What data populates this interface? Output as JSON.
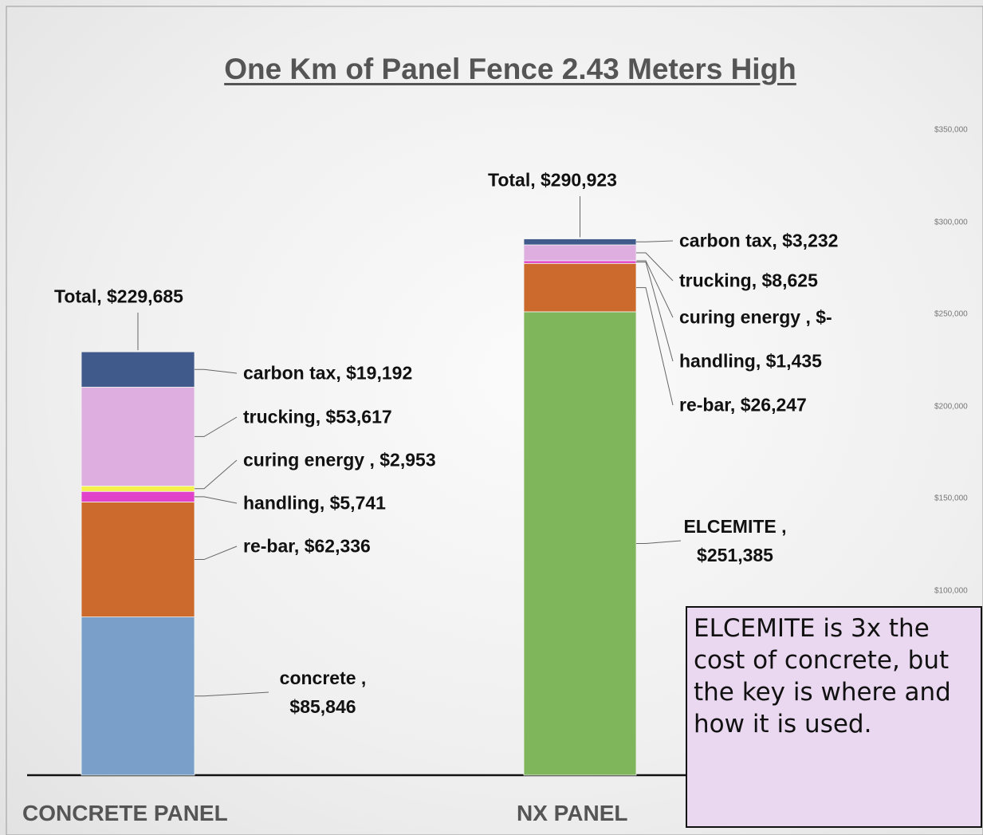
{
  "chart_data": {
    "type": "stacked_bar",
    "title": "One Km of Panel Fence 2.43 Meters High",
    "categories": [
      "CONCRETE PANEL",
      "NX PANEL"
    ],
    "series": [
      {
        "name": "concrete",
        "color": "#7aa0c9",
        "values": [
          85846,
          null
        ],
        "value_labels": [
          "concrete , $85,846",
          null
        ]
      },
      {
        "name": "ELCEMITE",
        "color": "#7fb65c",
        "values": [
          null,
          251385
        ],
        "value_labels": [
          null,
          "ELCEMITE , $251,385"
        ]
      },
      {
        "name": "re-bar",
        "color": "#cc6a2e",
        "values": [
          62336,
          26247
        ],
        "value_labels": [
          "re-bar,  $62,336",
          "re-bar,  $26,247"
        ]
      },
      {
        "name": "handling",
        "color": "#e043c9",
        "values": [
          5741,
          1435
        ],
        "value_labels": [
          "handling,  $5,741",
          "handling,  $1,435"
        ]
      },
      {
        "name": "curing energy",
        "color": "#f6f04c",
        "values": [
          2953,
          0
        ],
        "value_labels": [
          "curing energy ,  $2,953",
          "curing energy ,  $-"
        ]
      },
      {
        "name": "trucking",
        "color": "#deaee0",
        "values": [
          53617,
          8625
        ],
        "value_labels": [
          "trucking,  $53,617",
          "trucking,  $8,625"
        ]
      },
      {
        "name": "carbon tax",
        "color": "#405b8b",
        "values": [
          19192,
          3232
        ],
        "value_labels": [
          "carbon tax,  $19,192",
          "carbon tax,  $3,232"
        ]
      }
    ],
    "totals": [
      229685,
      290923
    ],
    "total_labels": [
      "Total,  $229,685",
      "Total,  $290,923"
    ],
    "ylim": [
      0,
      350000
    ],
    "yticks": [
      {
        "value": 100000,
        "label": "$100,000"
      },
      {
        "value": 150000,
        "label": "$150,000"
      },
      {
        "value": 200000,
        "label": "$200,000"
      },
      {
        "value": 250000,
        "label": "$250,000"
      },
      {
        "value": 300000,
        "label": "$300,000"
      },
      {
        "value": 350000,
        "label": "$350,000"
      }
    ],
    "grid": false,
    "annotation": "ELCEMITE is 3x the cost of concrete, but the key is where and how it is used."
  }
}
